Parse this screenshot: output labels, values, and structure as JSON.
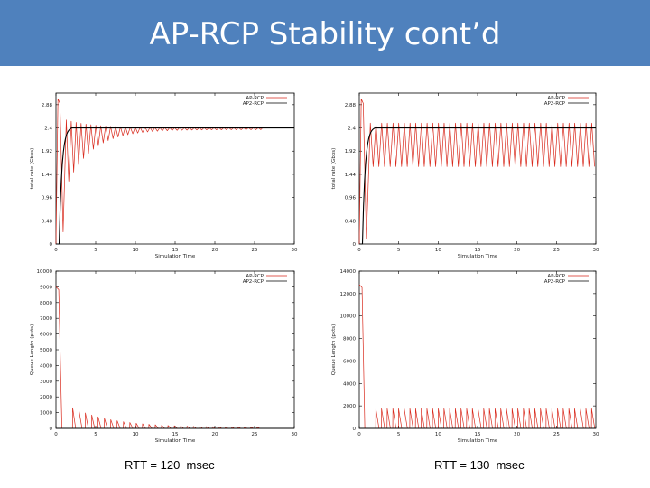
{
  "slide": {
    "title": "AP-RCP Stability cont’d",
    "captions": [
      "RTT = 120  msec",
      "RTT = 130  msec"
    ]
  },
  "colors": {
    "title_bar": "#4f81bd",
    "title_text": "#ffffff",
    "series_ap_rcp": "#d9291c",
    "series_ap2_rcp": "#000000"
  },
  "chart_data": [
    {
      "type": "line",
      "xlabel": "Simulation Time",
      "ylabel": "total rate (Gbps)",
      "xlim": [
        0,
        30
      ],
      "ylim": [
        0,
        3.12
      ],
      "xticks": [
        0,
        5,
        10,
        15,
        20,
        25,
        30
      ],
      "yticks": [
        0,
        0.48,
        0.96,
        1.44,
        1.92,
        2.4,
        2.88
      ],
      "ytick_labels": [
        "0",
        "0.48",
        "0.96",
        "1.44",
        "1.92",
        "2.4",
        "2.88"
      ],
      "legend": "top-right",
      "series": [
        {
          "name": "AP-RCP",
          "pattern": "damped_oscillation",
          "steady_value": 2.4,
          "initial_peak": 3.0,
          "initial_trough": 0.25,
          "end_x": 26
        },
        {
          "name": "AP2-RCP",
          "pattern": "step_rise",
          "steady_value": 2.4,
          "start_x": 0.4,
          "settle_x": 2.0
        }
      ]
    },
    {
      "type": "line",
      "xlabel": "Simulation Time",
      "ylabel": "total rate (Gbps)",
      "xlim": [
        0,
        30
      ],
      "ylim": [
        0,
        3.12
      ],
      "xticks": [
        0,
        5,
        10,
        15,
        20,
        25,
        30
      ],
      "yticks": [
        0,
        0.48,
        0.96,
        1.44,
        1.92,
        2.4,
        2.88
      ],
      "ytick_labels": [
        "0",
        "0.48",
        "0.96",
        "1.44",
        "1.92",
        "2.4",
        "2.88"
      ],
      "legend": "top-right",
      "series": [
        {
          "name": "AP-RCP",
          "pattern": "sustained_oscillation",
          "high": 2.5,
          "low": 1.6,
          "period": 0.72,
          "initial_peak": 3.0,
          "initial_trough": 0.1
        },
        {
          "name": "AP2-RCP",
          "pattern": "step_rise",
          "steady_value": 2.4,
          "start_x": 0.4,
          "settle_x": 2.0
        }
      ]
    },
    {
      "type": "line",
      "xlabel": "Simulation Time",
      "ylabel": "Queue Length (pkts)",
      "xlim": [
        0,
        30
      ],
      "ylim": [
        0,
        10000
      ],
      "xticks": [
        0,
        5,
        10,
        15,
        20,
        25,
        30
      ],
      "yticks": [
        0,
        1000,
        2000,
        3000,
        4000,
        5000,
        6000,
        7000,
        8000,
        9000,
        10000
      ],
      "legend": "top-right",
      "series": [
        {
          "name": "AP-RCP",
          "pattern": "decaying_spikes",
          "initial_peak": 9000,
          "first_spike": 1250,
          "decay_end_x": 26
        },
        {
          "name": "AP2-RCP",
          "pattern": "flat",
          "value": 0
        }
      ]
    },
    {
      "type": "line",
      "xlabel": "Simulation Time",
      "ylabel": "Queue Length (pkts)",
      "xlim": [
        0,
        30
      ],
      "ylim": [
        0,
        14000
      ],
      "xticks": [
        0,
        5,
        10,
        15,
        20,
        25,
        30
      ],
      "yticks": [
        0,
        2000,
        4000,
        6000,
        8000,
        10000,
        12000,
        14000
      ],
      "legend": "top-right",
      "series": [
        {
          "name": "AP-RCP",
          "pattern": "sustained_spikes",
          "initial_peak": 12800,
          "spike_height": 1750,
          "period": 0.72
        },
        {
          "name": "AP2-RCP",
          "pattern": "flat",
          "value": 0
        }
      ]
    }
  ]
}
